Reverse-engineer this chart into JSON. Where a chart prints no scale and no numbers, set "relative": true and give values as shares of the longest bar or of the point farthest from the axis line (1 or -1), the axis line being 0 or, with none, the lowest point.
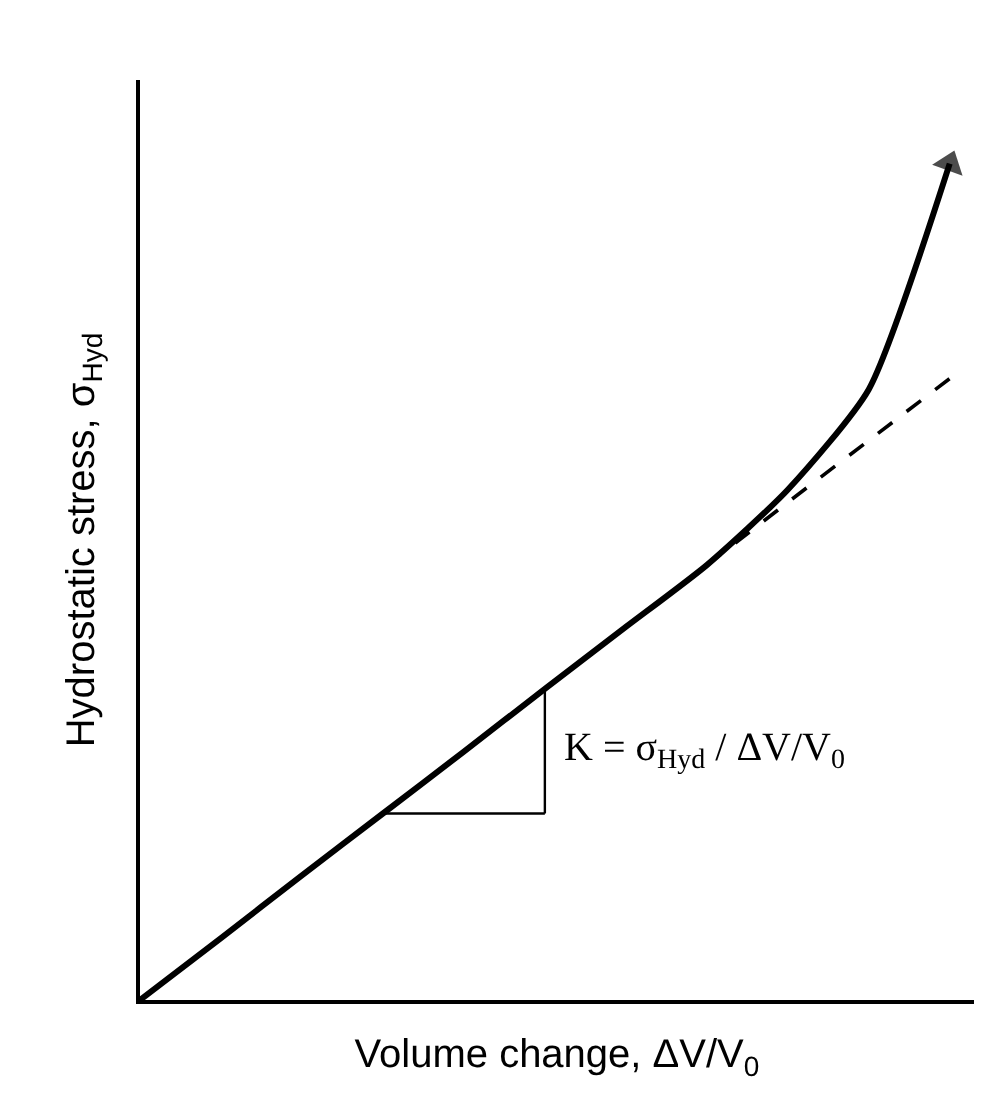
{
  "chart_data": {
    "type": "line",
    "relative": true,
    "xlabel": "Volume change, ΔV/V$_{0}$",
    "ylabel": "Hydrostatic stress, σ$_{Hyd}$",
    "categories": [
      null,
      null,
      null,
      null,
      null,
      null,
      null,
      null,
      null,
      null,
      null
    ],
    "series": [
      {
        "color": "#000000",
        "line_style": "solid",
        "values": [
          0,
          0.074,
          0.149,
          0.223,
          0.297,
          0.372,
          0.446,
          0.52,
          0.61,
          0.73,
          1.0
        ]
      },
      {
        "color": "#000000",
        "line_style": "dashed",
        "values": [
          null,
          null,
          null,
          null,
          null,
          null,
          null,
          0.52,
          0.595,
          0.669,
          0.743
        ]
      }
    ],
    "annotations": [
      "K = σ$_{Hyd}$ / ΔV/V$_{0}$"
    ],
    "legend": false
  }
}
